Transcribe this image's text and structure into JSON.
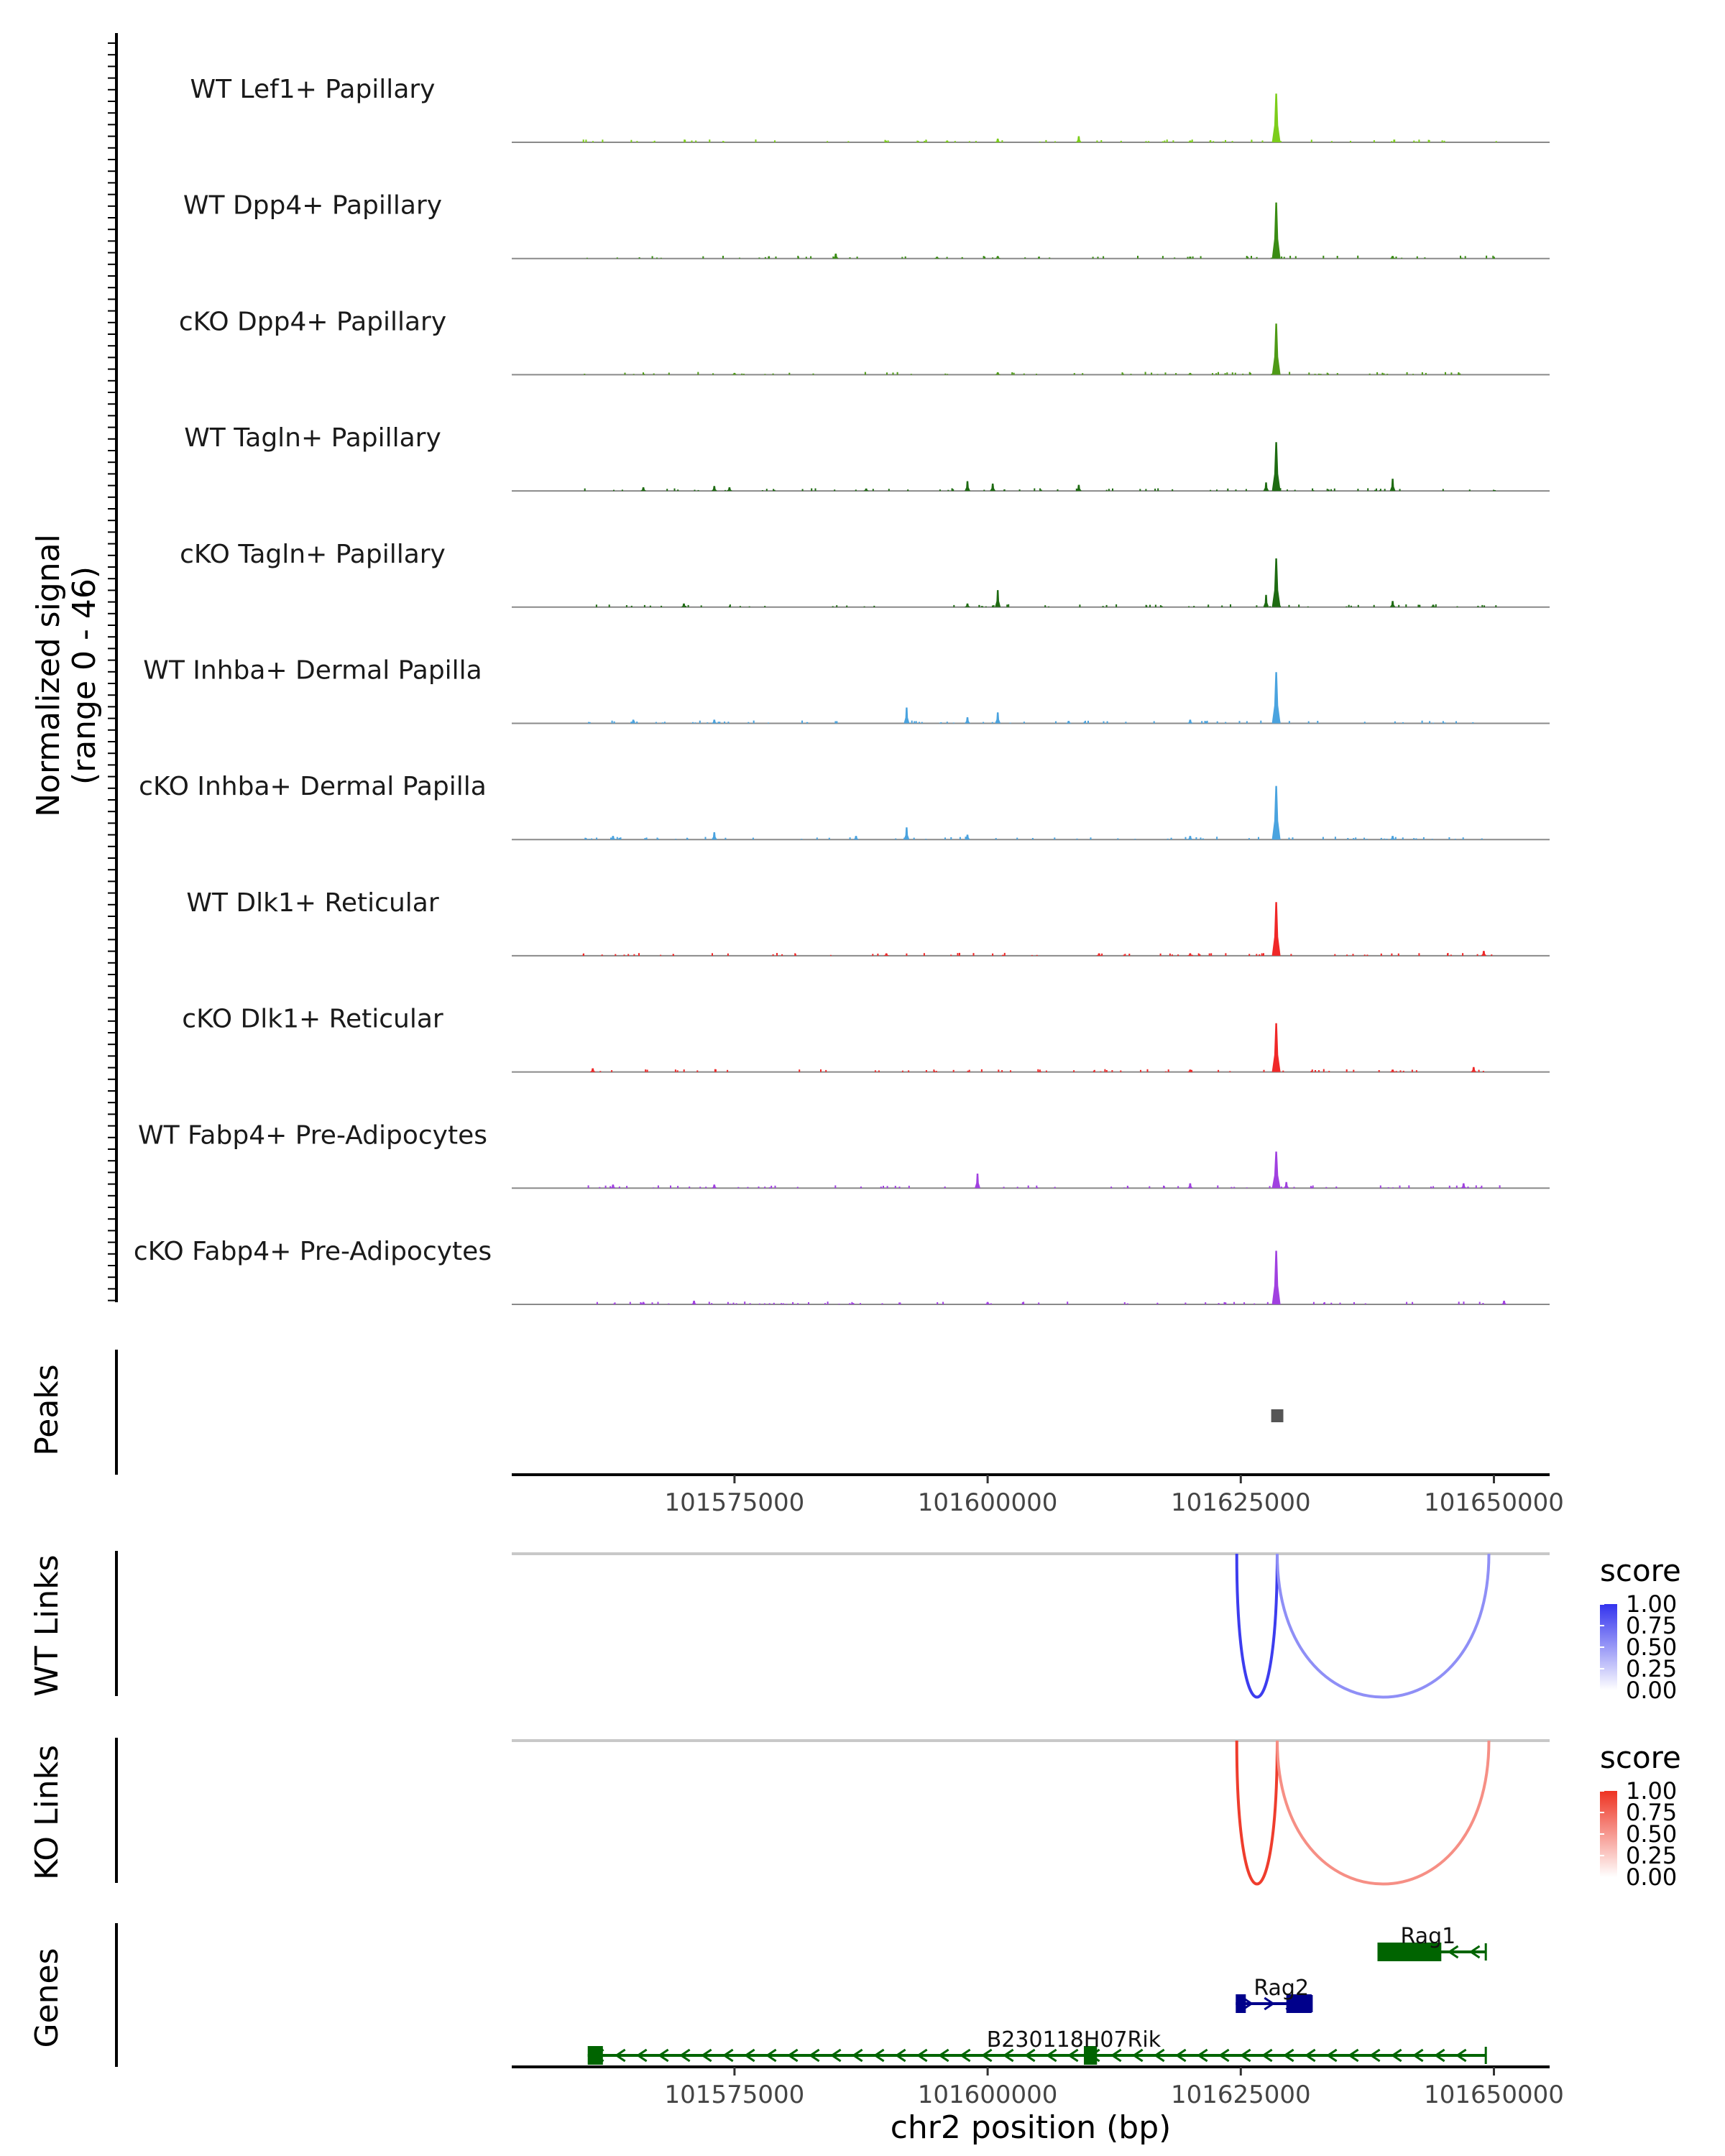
{
  "chart_data": {
    "type": "genome-browser-coverage",
    "coverage": {
      "ylabel_line1": "Normalized signal",
      "ylabel_line2": "(range 0 - 46)",
      "ylim": [
        0,
        46
      ],
      "tracks": [
        {
          "name": "WT Lef1+ Papillary",
          "color": "#7CCD1A",
          "peaks": [
            [
              101628500,
              40
            ],
            [
              101609000,
              5
            ],
            [
              101601000,
              3
            ],
            [
              101596000,
              1.5
            ],
            [
              101620000,
              1.5
            ]
          ]
        },
        {
          "name": "WT Dpp4+ Papillary",
          "color": "#3A8C14",
          "peaks": [
            [
              101628500,
              46
            ],
            [
              101585000,
              4
            ],
            [
              101601000,
              2
            ],
            [
              101640000,
              2
            ],
            [
              101595000,
              1.5
            ]
          ]
        },
        {
          "name": "cKO Dpp4+ Papillary",
          "color": "#4E9A16",
          "peaks": [
            [
              101628500,
              42
            ],
            [
              101601000,
              2
            ],
            [
              101620000,
              1.5
            ],
            [
              101575000,
              1.5
            ]
          ]
        },
        {
          "name": "WT Tagln+ Papillary",
          "color": "#1E6B12",
          "peaks": [
            [
              101628500,
              40
            ],
            [
              101640000,
              10
            ],
            [
              101598000,
              8
            ],
            [
              101600500,
              6
            ],
            [
              101609000,
              5
            ],
            [
              101627500,
              7
            ],
            [
              101573000,
              4
            ],
            [
              101574500,
              3
            ],
            [
              101566000,
              3
            ],
            [
              101588000,
              2
            ]
          ]
        },
        {
          "name": "cKO Tagln+ Papillary",
          "color": "#1E6B12",
          "peaks": [
            [
              101628500,
              40
            ],
            [
              101601000,
              14
            ],
            [
              101627500,
              10
            ],
            [
              101640000,
              5
            ],
            [
              101570000,
              3
            ],
            [
              101598000,
              3
            ],
            [
              101644000,
              2
            ]
          ]
        },
        {
          "name": "WT Inhba+ Dermal Papilla",
          "color": "#4AA3DF",
          "peaks": [
            [
              101628500,
              42
            ],
            [
              101592000,
              13
            ],
            [
              101601000,
              9
            ],
            [
              101598000,
              5
            ],
            [
              101573000,
              3
            ],
            [
              101565000,
              3
            ],
            [
              101620000,
              3
            ],
            [
              101608000,
              2
            ]
          ]
        },
        {
          "name": "cKO Inhba+ Dermal Papilla",
          "color": "#4AA3DF",
          "peaks": [
            [
              101628500,
              44
            ],
            [
              101592000,
              10
            ],
            [
              101573000,
              6
            ],
            [
              101598000,
              4
            ],
            [
              101563000,
              3
            ],
            [
              101587000,
              3
            ],
            [
              101620000,
              3
            ],
            [
              101640000,
              3
            ]
          ]
        },
        {
          "name": "WT Dlk1+ Reticular",
          "color": "#F02828",
          "peaks": [
            [
              101628500,
              44
            ],
            [
              101649000,
              4
            ],
            [
              101620000,
              2
            ],
            [
              101611000,
              2
            ],
            [
              101590000,
              2
            ]
          ]
        },
        {
          "name": "cKO Dlk1+ Reticular",
          "color": "#F02828",
          "peaks": [
            [
              101628500,
              40
            ],
            [
              101648000,
              4
            ],
            [
              101561000,
              3
            ],
            [
              101620000,
              2
            ],
            [
              101640000,
              2
            ]
          ]
        },
        {
          "name": "WT Fabp4+ Pre-Adipocytes",
          "color": "#A040E0",
          "peaks": [
            [
              101628500,
              30
            ],
            [
              101599000,
              12
            ],
            [
              101620000,
              4
            ],
            [
              101629500,
              5
            ],
            [
              101647000,
              4
            ],
            [
              101563000,
              3
            ],
            [
              101573000,
              3
            ]
          ]
        },
        {
          "name": "cKO Fabp4+ Pre-Adipocytes",
          "color": "#A040E0",
          "peaks": [
            [
              101628500,
              44
            ],
            [
              101571000,
              3
            ],
            [
              101651000,
              3
            ],
            [
              101566000,
              2
            ],
            [
              101600000,
              2
            ]
          ]
        }
      ]
    },
    "peaks_track": {
      "label": "Peaks",
      "regions": [
        [
          101628000,
          101629200
        ]
      ]
    },
    "axis": {
      "xlim": [
        101553000,
        101655500
      ],
      "ticks": [
        101575000,
        101600000,
        101625000,
        101650000
      ],
      "tick_labels": [
        "101575000",
        "101600000",
        "101625000",
        "101650000"
      ],
      "xlabel": "chr2 position (bp)"
    },
    "links": [
      {
        "label": "WT Links",
        "legend_title": "score",
        "legend_color": "#3333EE",
        "legend_ticks": [
          "1.00",
          "0.75",
          "0.50",
          "0.25",
          "0.00"
        ],
        "arcs": [
          {
            "start": 101624600,
            "end": 101628600,
            "score": 0.95
          },
          {
            "start": 101628600,
            "end": 101649500,
            "score": 0.55
          }
        ]
      },
      {
        "label": "KO Links",
        "legend_title": "score",
        "legend_color": "#EE3322",
        "legend_ticks": [
          "1.00",
          "0.75",
          "0.50",
          "0.25",
          "0.00"
        ],
        "arcs": [
          {
            "start": 101624600,
            "end": 101628600,
            "score": 0.95
          },
          {
            "start": 101628600,
            "end": 101649500,
            "score": 0.55
          }
        ]
      }
    ],
    "genes": {
      "label": "Genes",
      "items": [
        {
          "name": "Rag1",
          "strand": "-",
          "start": 101638500,
          "end": 101649200,
          "color": "#006400",
          "row": 0,
          "exons": [
            [
              101638500,
              101644800
            ]
          ],
          "label_pos": 101643500
        },
        {
          "name": "Rag2",
          "strand": "+",
          "start": 101624500,
          "end": 101632000,
          "color": "#00008B",
          "row": 1,
          "exons": [
            [
              101624500,
              101624900
            ],
            [
              101629500,
              101632000
            ]
          ],
          "label_pos": 101629000
        },
        {
          "name": "B230118H07Rik",
          "strand": "-",
          "start": 101560500,
          "end": 101649200,
          "color": "#006400",
          "row": 2,
          "exons": [
            [
              101560500,
              101562000
            ],
            [
              101609500,
              101610800
            ]
          ],
          "label_pos": 101608500
        }
      ]
    }
  }
}
